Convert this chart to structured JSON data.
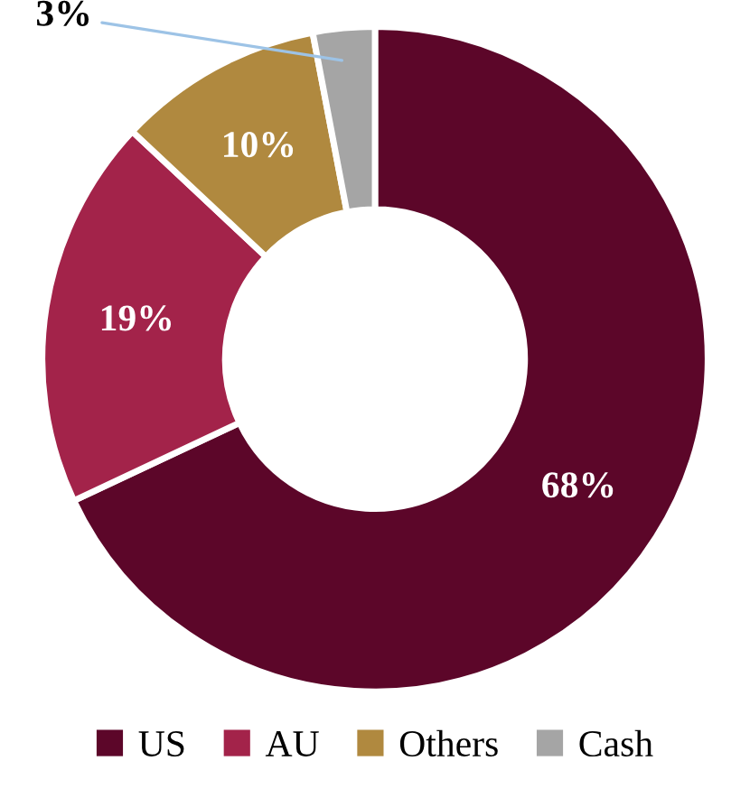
{
  "chart_data": {
    "type": "donut",
    "categories": [
      "US",
      "AU",
      "Others",
      "Cash"
    ],
    "values": [
      68,
      19,
      10,
      3
    ],
    "colors": [
      "#5c0629",
      "#a3234a",
      "#b0893f",
      "#a5a5a5"
    ],
    "value_labels": [
      "68%",
      "19%",
      "10%",
      "3%"
    ],
    "legend": "bottom"
  }
}
